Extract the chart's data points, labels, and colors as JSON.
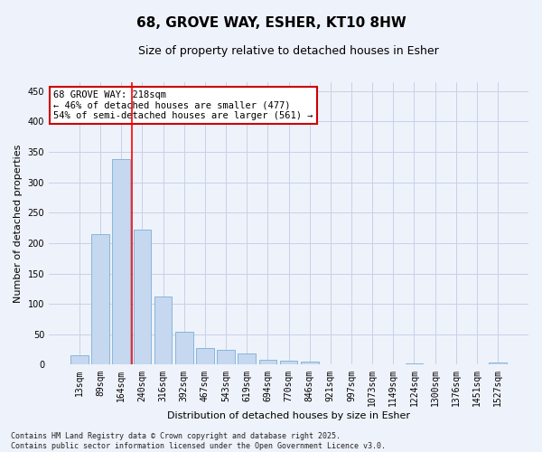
{
  "title": "68, GROVE WAY, ESHER, KT10 8HW",
  "subtitle": "Size of property relative to detached houses in Esher",
  "xlabel": "Distribution of detached houses by size in Esher",
  "ylabel": "Number of detached properties",
  "bar_color": "#c5d8f0",
  "bar_edge_color": "#7aafd4",
  "background_color": "#eef2fa",
  "grid_color": "#c8d0e8",
  "categories": [
    "13sqm",
    "89sqm",
    "164sqm",
    "240sqm",
    "316sqm",
    "392sqm",
    "467sqm",
    "543sqm",
    "619sqm",
    "694sqm",
    "770sqm",
    "846sqm",
    "921sqm",
    "997sqm",
    "1073sqm",
    "1149sqm",
    "1224sqm",
    "1300sqm",
    "1376sqm",
    "1451sqm",
    "1527sqm"
  ],
  "values": [
    15,
    215,
    338,
    222,
    112,
    54,
    27,
    25,
    19,
    8,
    6,
    5,
    1,
    1,
    0,
    0,
    2,
    0,
    0,
    0,
    3
  ],
  "ylim": [
    0,
    465
  ],
  "yticks": [
    0,
    50,
    100,
    150,
    200,
    250,
    300,
    350,
    400,
    450
  ],
  "red_line_index": 3,
  "annotation_text": "68 GROVE WAY: 218sqm\n← 46% of detached houses are smaller (477)\n54% of semi-detached houses are larger (561) →",
  "annotation_box_color": "#ffffff",
  "annotation_box_edge": "#cc0000",
  "footer_text": "Contains HM Land Registry data © Crown copyright and database right 2025.\nContains public sector information licensed under the Open Government Licence v3.0.",
  "title_fontsize": 11,
  "subtitle_fontsize": 9,
  "label_fontsize": 8,
  "tick_fontsize": 7,
  "annotation_fontsize": 7.5
}
